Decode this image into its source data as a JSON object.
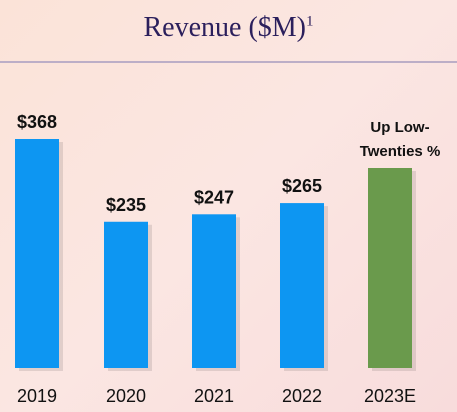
{
  "chart_data": {
    "type": "bar",
    "title": "Revenue ($M)",
    "title_footnote": "1",
    "categories": [
      "2019",
      "2020",
      "2021",
      "2022",
      "2023E"
    ],
    "values": [
      368,
      235,
      247,
      265,
      null
    ],
    "data_labels": [
      "$368",
      "$235",
      "$247",
      "$265",
      "Up Low-\nTwenties %"
    ],
    "colors": [
      "#0d96f2",
      "#0d96f2",
      "#0d96f2",
      "#0d96f2",
      "#6a9a4c"
    ],
    "estimate_note": {
      "line1": "Up Low-",
      "line2": "Twenties %"
    },
    "grid": false,
    "legend": "none"
  }
}
